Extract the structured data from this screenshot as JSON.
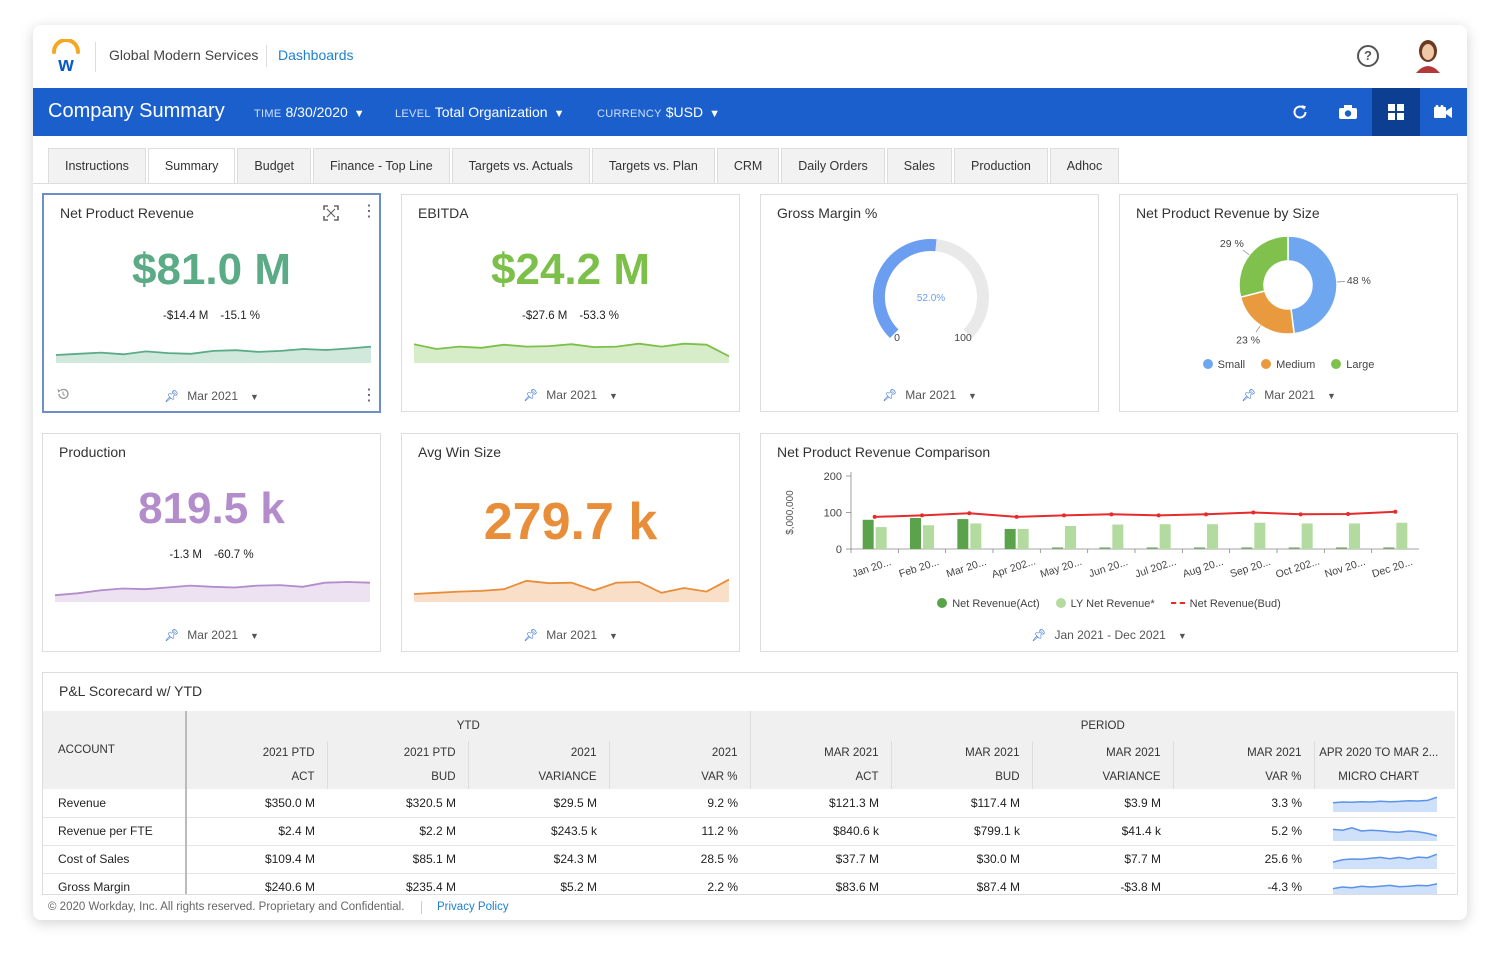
{
  "header": {
    "org_name": "Global Modern Services",
    "dashboards_link": "Dashboards",
    "help_glyph": "?"
  },
  "toolbar": {
    "title": "Company Summary",
    "time_label": "TIME",
    "time_value": "8/30/2020",
    "level_label": "LEVEL",
    "level_value": "Total Organization",
    "currency_label": "CURRENCY",
    "currency_value": "$USD",
    "icons": [
      "refresh-icon",
      "camera-icon",
      "grid-icon",
      "video-icon"
    ]
  },
  "tabs": [
    {
      "label": "Instructions"
    },
    {
      "label": "Summary",
      "active": true
    },
    {
      "label": "Budget"
    },
    {
      "label": "Finance - Top Line"
    },
    {
      "label": "Targets vs. Actuals"
    },
    {
      "label": "Targets vs. Plan"
    },
    {
      "label": "CRM"
    },
    {
      "label": "Daily Orders"
    },
    {
      "label": "Sales"
    },
    {
      "label": "Production"
    },
    {
      "label": "Adhoc"
    }
  ],
  "cards": {
    "npr": {
      "title": "Net Product Revenue",
      "value": "$81.0 M",
      "delta_abs": "-$14.4 M",
      "delta_pct": "-15.1 %",
      "period": "Mar 2021",
      "color": "#5aab86",
      "spark": [
        0.25,
        0.3,
        0.35,
        0.28,
        0.4,
        0.33,
        0.3,
        0.42,
        0.45,
        0.38,
        0.42,
        0.5,
        0.46,
        0.52,
        0.6
      ]
    },
    "ebitda": {
      "title": "EBITDA",
      "value": "$24.2 M",
      "delta_abs": "-$27.6 M",
      "delta_pct": "-53.3 %",
      "period": "Mar 2021",
      "color": "#7cc04a",
      "spark": [
        0.7,
        0.5,
        0.6,
        0.55,
        0.68,
        0.6,
        0.62,
        0.7,
        0.58,
        0.6,
        0.72,
        0.6,
        0.72,
        0.68,
        0.2
      ]
    },
    "gm": {
      "title": "Gross Margin %",
      "value_label": "52.0%",
      "value": 52.0,
      "min_label": "0",
      "max_label": "100",
      "period": "Mar 2021",
      "color": "#6b9ef0"
    },
    "nprs": {
      "title": "Net Product Revenue by Size",
      "period": "Mar 2021"
    },
    "prod": {
      "title": "Production",
      "value": "819.5 k",
      "delta_abs": "-1.3 M",
      "delta_pct": "-60.7 %",
      "period": "Mar 2021",
      "color": "#b38ccc",
      "spark": [
        0.2,
        0.28,
        0.4,
        0.48,
        0.45,
        0.52,
        0.6,
        0.55,
        0.52,
        0.6,
        0.62,
        0.55,
        0.72,
        0.75,
        0.72
      ]
    },
    "aws": {
      "title": "Avg Win Size",
      "value": "279.7 k",
      "period": "Mar 2021",
      "color": "#e88d3a",
      "spark": [
        0.25,
        0.3,
        0.35,
        0.38,
        0.45,
        0.8,
        0.7,
        0.72,
        0.4,
        0.72,
        0.75,
        0.3,
        0.5,
        0.35,
        0.85
      ]
    },
    "nprc": {
      "title": "Net Product Revenue Comparison",
      "period": "Jan 2021 - Dec 2021"
    }
  },
  "chart_data": [
    {
      "type": "pie",
      "title": "Net Product Revenue by Size",
      "categories": [
        "Small",
        "Medium",
        "Large"
      ],
      "values": [
        48,
        23,
        29
      ],
      "labels": [
        "48 %",
        "23 %",
        "29 %"
      ],
      "colors": [
        "#6ea6ef",
        "#ea9a3e",
        "#80c14e"
      ],
      "legend": "bottom"
    },
    {
      "type": "bar",
      "title": "Net Product Revenue Comparison",
      "ylabel": "$,000,000",
      "ylim": [
        0,
        200
      ],
      "yticks": [
        0,
        100,
        200
      ],
      "categories": [
        "Jan 20...",
        "Feb 20...",
        "Mar 20...",
        "Apr 202...",
        "May 20...",
        "Jun 20...",
        "Jul 202...",
        "Aug 20...",
        "Sep 20...",
        "Oct 202...",
        "Nov 20...",
        "Dec 20..."
      ],
      "series": [
        {
          "name": "Net Revenue(Act)",
          "kind": "bar",
          "color": "#5aa34a",
          "values": [
            80,
            85,
            82,
            55,
            null,
            null,
            null,
            null,
            null,
            null,
            null,
            null
          ]
        },
        {
          "name": "LY Net Revenue*",
          "kind": "bar",
          "color": "#b3dba0",
          "values": [
            60,
            65,
            70,
            55,
            63,
            67,
            68,
            68,
            72,
            70,
            70,
            72
          ]
        },
        {
          "name": "Net Revenue(Bud)",
          "kind": "line",
          "color": "#e52b2b",
          "values": [
            88,
            92,
            98,
            88,
            92,
            95,
            92,
            95,
            100,
            95,
            96,
            102
          ]
        }
      ],
      "legend": "bottom"
    }
  ],
  "pl": {
    "title": "P&L Scorecard w/ YTD",
    "group_ytd": "YTD",
    "group_period": "PERIOD",
    "account_header": "ACCOUNT",
    "cols_line1": [
      "2021 PTD",
      "2021 PTD",
      "2021",
      "2021",
      "MAR 2021",
      "MAR 2021",
      "MAR 2021",
      "MAR 2021",
      "APR 2020 TO MAR 2..."
    ],
    "cols_line2": [
      "ACT",
      "BUD",
      "VARIANCE",
      "VAR %",
      "ACT",
      "BUD",
      "VARIANCE",
      "VAR %",
      "MICRO CHART"
    ],
    "rows": [
      {
        "account": "Revenue",
        "cells": [
          "$350.0 M",
          "$320.5 M",
          "$29.5 M",
          "9.2 %",
          "$121.3 M",
          "$117.4 M",
          "$3.9 M",
          "3.3 %"
        ],
        "micro": [
          0.45,
          0.5,
          0.48,
          0.52,
          0.5,
          0.55,
          0.52,
          0.54,
          0.58,
          0.56,
          0.6,
          0.8
        ]
      },
      {
        "account": "Revenue per FTE",
        "cells": [
          "$2.4 M",
          "$2.2 M",
          "$243.5 k",
          "11.2 %",
          "$840.6 k",
          "$799.1 k",
          "$41.4 k",
          "5.2 %"
        ],
        "micro": [
          0.6,
          0.55,
          0.7,
          0.5,
          0.55,
          0.52,
          0.45,
          0.42,
          0.5,
          0.45,
          0.35,
          0.2
        ]
      },
      {
        "account": "Cost of Sales",
        "cells": [
          "$109.4 M",
          "$85.1 M",
          "$24.3 M",
          "28.5 %",
          "$37.7 M",
          "$30.0 M",
          "$7.7 M",
          "25.6 %"
        ],
        "micro": [
          0.3,
          0.45,
          0.5,
          0.48,
          0.55,
          0.6,
          0.52,
          0.6,
          0.5,
          0.62,
          0.58,
          0.8
        ]
      },
      {
        "account": "Gross Margin",
        "cells": [
          "$240.6 M",
          "$235.4 M",
          "$5.2 M",
          "2.2 %",
          "$83.6 M",
          "$87.4 M",
          "-$3.8 M",
          "-4.3 %"
        ],
        "micro": [
          0.4,
          0.5,
          0.45,
          0.55,
          0.5,
          0.55,
          0.6,
          0.52,
          0.55,
          0.6,
          0.58,
          0.7
        ]
      }
    ]
  },
  "footer": {
    "copyright": "© 2020 Workday, Inc. All rights reserved. Proprietary and Confidential.",
    "privacy": "Privacy Policy"
  }
}
